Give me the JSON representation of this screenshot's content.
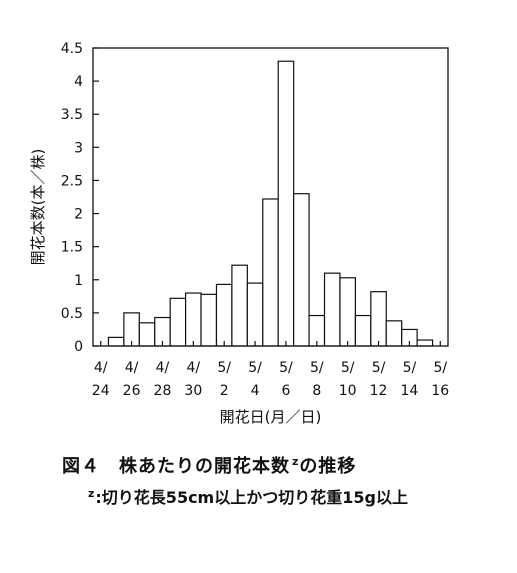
{
  "chart_data": {
    "type": "bar",
    "categories": [
      "4/24",
      "4/25",
      "4/26",
      "4/27",
      "4/28",
      "4/29",
      "4/30",
      "5/1",
      "5/2",
      "5/3",
      "5/4",
      "5/5",
      "5/6",
      "5/7",
      "5/8",
      "5/9",
      "5/10",
      "5/11",
      "5/12",
      "5/13",
      "5/14",
      "5/15",
      "5/16"
    ],
    "values": [
      0,
      0.13,
      0.5,
      0.35,
      0.43,
      0.72,
      0.8,
      0.78,
      0.93,
      1.22,
      0.95,
      2.22,
      4.3,
      2.3,
      0.46,
      1.1,
      1.03,
      0.46,
      0.82,
      0.38,
      0.25,
      0.09,
      0
    ],
    "x_ticks": [
      {
        "top": "4/",
        "bottom": "24"
      },
      {
        "top": "4/",
        "bottom": "26"
      },
      {
        "top": "4/",
        "bottom": "28"
      },
      {
        "top": "4/",
        "bottom": "30"
      },
      {
        "top": "5/",
        "bottom": "2"
      },
      {
        "top": "5/",
        "bottom": "4"
      },
      {
        "top": "5/",
        "bottom": "6"
      },
      {
        "top": "5/",
        "bottom": "8"
      },
      {
        "top": "5/",
        "bottom": "10"
      },
      {
        "top": "5/",
        "bottom": "12"
      },
      {
        "top": "5/",
        "bottom": "14"
      },
      {
        "top": "5/",
        "bottom": "16"
      }
    ],
    "y_ticks": [
      "0",
      "0.5",
      "1",
      "1.5",
      "2",
      "2.5",
      "3",
      "3.5",
      "4",
      "4.5"
    ],
    "ylim": [
      0,
      4.5
    ],
    "xlabel": "開花日(月／日)",
    "ylabel": "開花本数(本／株)",
    "grid": false,
    "bar_color": "#ffffff",
    "edge_color": "#111111"
  },
  "figure": {
    "title": "図４　株あたりの開花本数",
    "title_sup": "z",
    "title_suffix": "の推移",
    "note_sup": "z",
    "note": ":切り花長55cm以上かつ切り花重15g以上"
  }
}
